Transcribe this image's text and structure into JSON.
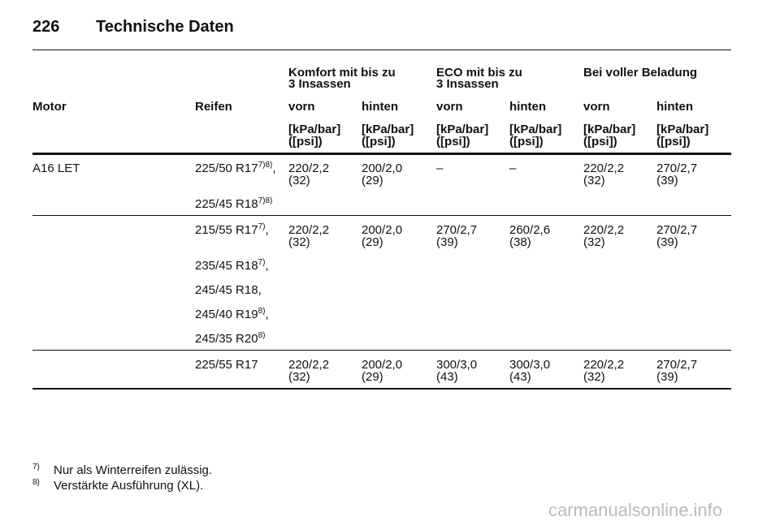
{
  "header": {
    "page": "226",
    "title": "Technische Daten"
  },
  "table": {
    "groups": [
      [
        "Komfort mit bis zu",
        "3 Insassen"
      ],
      [
        "ECO mit bis zu",
        "3 Insassen"
      ],
      [
        "Bei voller Beladung"
      ]
    ],
    "columns": [
      "Motor",
      "Reifen",
      "vorn",
      "hinten",
      "vorn",
      "hinten",
      "vorn",
      "hinten"
    ],
    "units": [
      [
        "[kPa/bar]",
        "([psi])"
      ],
      [
        "[kPa/bar]",
        "([psi])"
      ],
      [
        "[kPa/bar]",
        "([psi])"
      ],
      [
        "[kPa/bar]",
        "([psi])"
      ],
      [
        "[kPa/bar]",
        "([psi])"
      ],
      [
        "[kPa/bar]",
        "([psi])"
      ]
    ],
    "rows": [
      {
        "motor": "A16 LET",
        "blocks": [
          {
            "tires": [
              {
                "name": "225/50 R17",
                "note": "7)8)",
                "sep": ","
              },
              {
                "name": "225/45 R18",
                "note": "7)8)"
              }
            ],
            "values": [
              [
                "220/2,2",
                "(32)"
              ],
              [
                "200/2,0",
                "(29)"
              ],
              [
                "–"
              ],
              [
                "–"
              ],
              [
                "220/2,2",
                "(32)"
              ],
              [
                "270/2,7",
                "(39)"
              ]
            ]
          },
          {
            "tires": [
              {
                "name": "215/55 R17",
                "note": "7)",
                "sep": ","
              },
              {
                "name": "235/45 R18",
                "note": "7)",
                "sep": ","
              },
              {
                "name": "245/45 R18",
                "sep": ","
              },
              {
                "name": "245/40 R19",
                "note": "8)",
                "sep": ","
              },
              {
                "name": "245/35 R20",
                "note": "8)"
              }
            ],
            "values": [
              [
                "220/2,2",
                "(32)"
              ],
              [
                "200/2,0",
                "(29)"
              ],
              [
                "270/2,7",
                "(39)"
              ],
              [
                "260/2,6",
                "(38)"
              ],
              [
                "220/2,2",
                "(32)"
              ],
              [
                "270/2,7",
                "(39)"
              ]
            ]
          },
          {
            "tires": [
              {
                "name": "225/55 R17"
              }
            ],
            "values": [
              [
                "220/2,2",
                "(32)"
              ],
              [
                "200/2,0",
                "(29)"
              ],
              [
                "300/3,0",
                "(43)"
              ],
              [
                "300/3,0",
                "(43)"
              ],
              [
                "220/2,2",
                "(32)"
              ],
              [
                "270/2,7",
                "(39)"
              ]
            ]
          }
        ]
      }
    ]
  },
  "footnotes": [
    {
      "mark": "7)",
      "text": "Nur als Winterreifen zulässig."
    },
    {
      "mark": "8)",
      "text": "Verstärkte Ausführung (XL)."
    }
  ],
  "watermark": "carmanualsonline.info"
}
